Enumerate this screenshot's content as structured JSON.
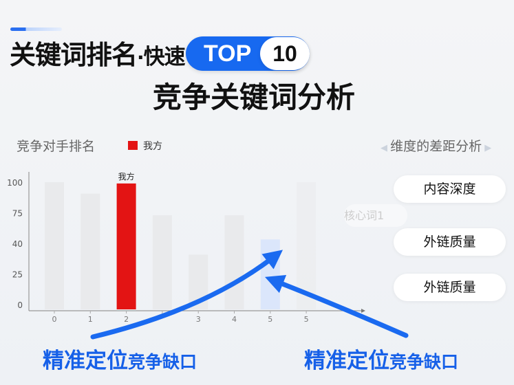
{
  "header": {
    "title_main": "关键词排名",
    "title_dot": "·",
    "title_fast": "快速",
    "badge_top": "TOP",
    "badge_num": "10",
    "subtitle": "竞争关键词分析"
  },
  "chart_data": {
    "type": "bar",
    "title": "竞争对手排名",
    "categories": [
      "0",
      "1",
      "2",
      "",
      "3",
      "4",
      "5",
      "5"
    ],
    "values": [
      100,
      91,
      99,
      74,
      43,
      74,
      55,
      100
    ],
    "highlight": {
      "index": 2,
      "label": "我方",
      "color": "#e31414"
    },
    "gap_index": 6,
    "gap_color": "#dbe6fb",
    "bar_color": "#e9eaec",
    "y_ticks": [
      "100",
      "75",
      "40",
      "25",
      "0"
    ],
    "ylim": [
      0,
      100
    ],
    "legend": [
      {
        "name": "我方",
        "color": "#e31414"
      }
    ],
    "legend_position": "top",
    "grid": false
  },
  "dimension": {
    "title": "维度的差距分析",
    "keyword": "核心词1",
    "items": [
      "内容深度",
      "外链质量",
      "外链质量"
    ]
  },
  "footer": {
    "left_big": "精准定位",
    "left_small": "竞争缺口",
    "right_big": "精准定位",
    "right_small": "竞争缺口"
  },
  "colors": {
    "accent": "#1769f0",
    "arrow": "#1a6af0"
  }
}
